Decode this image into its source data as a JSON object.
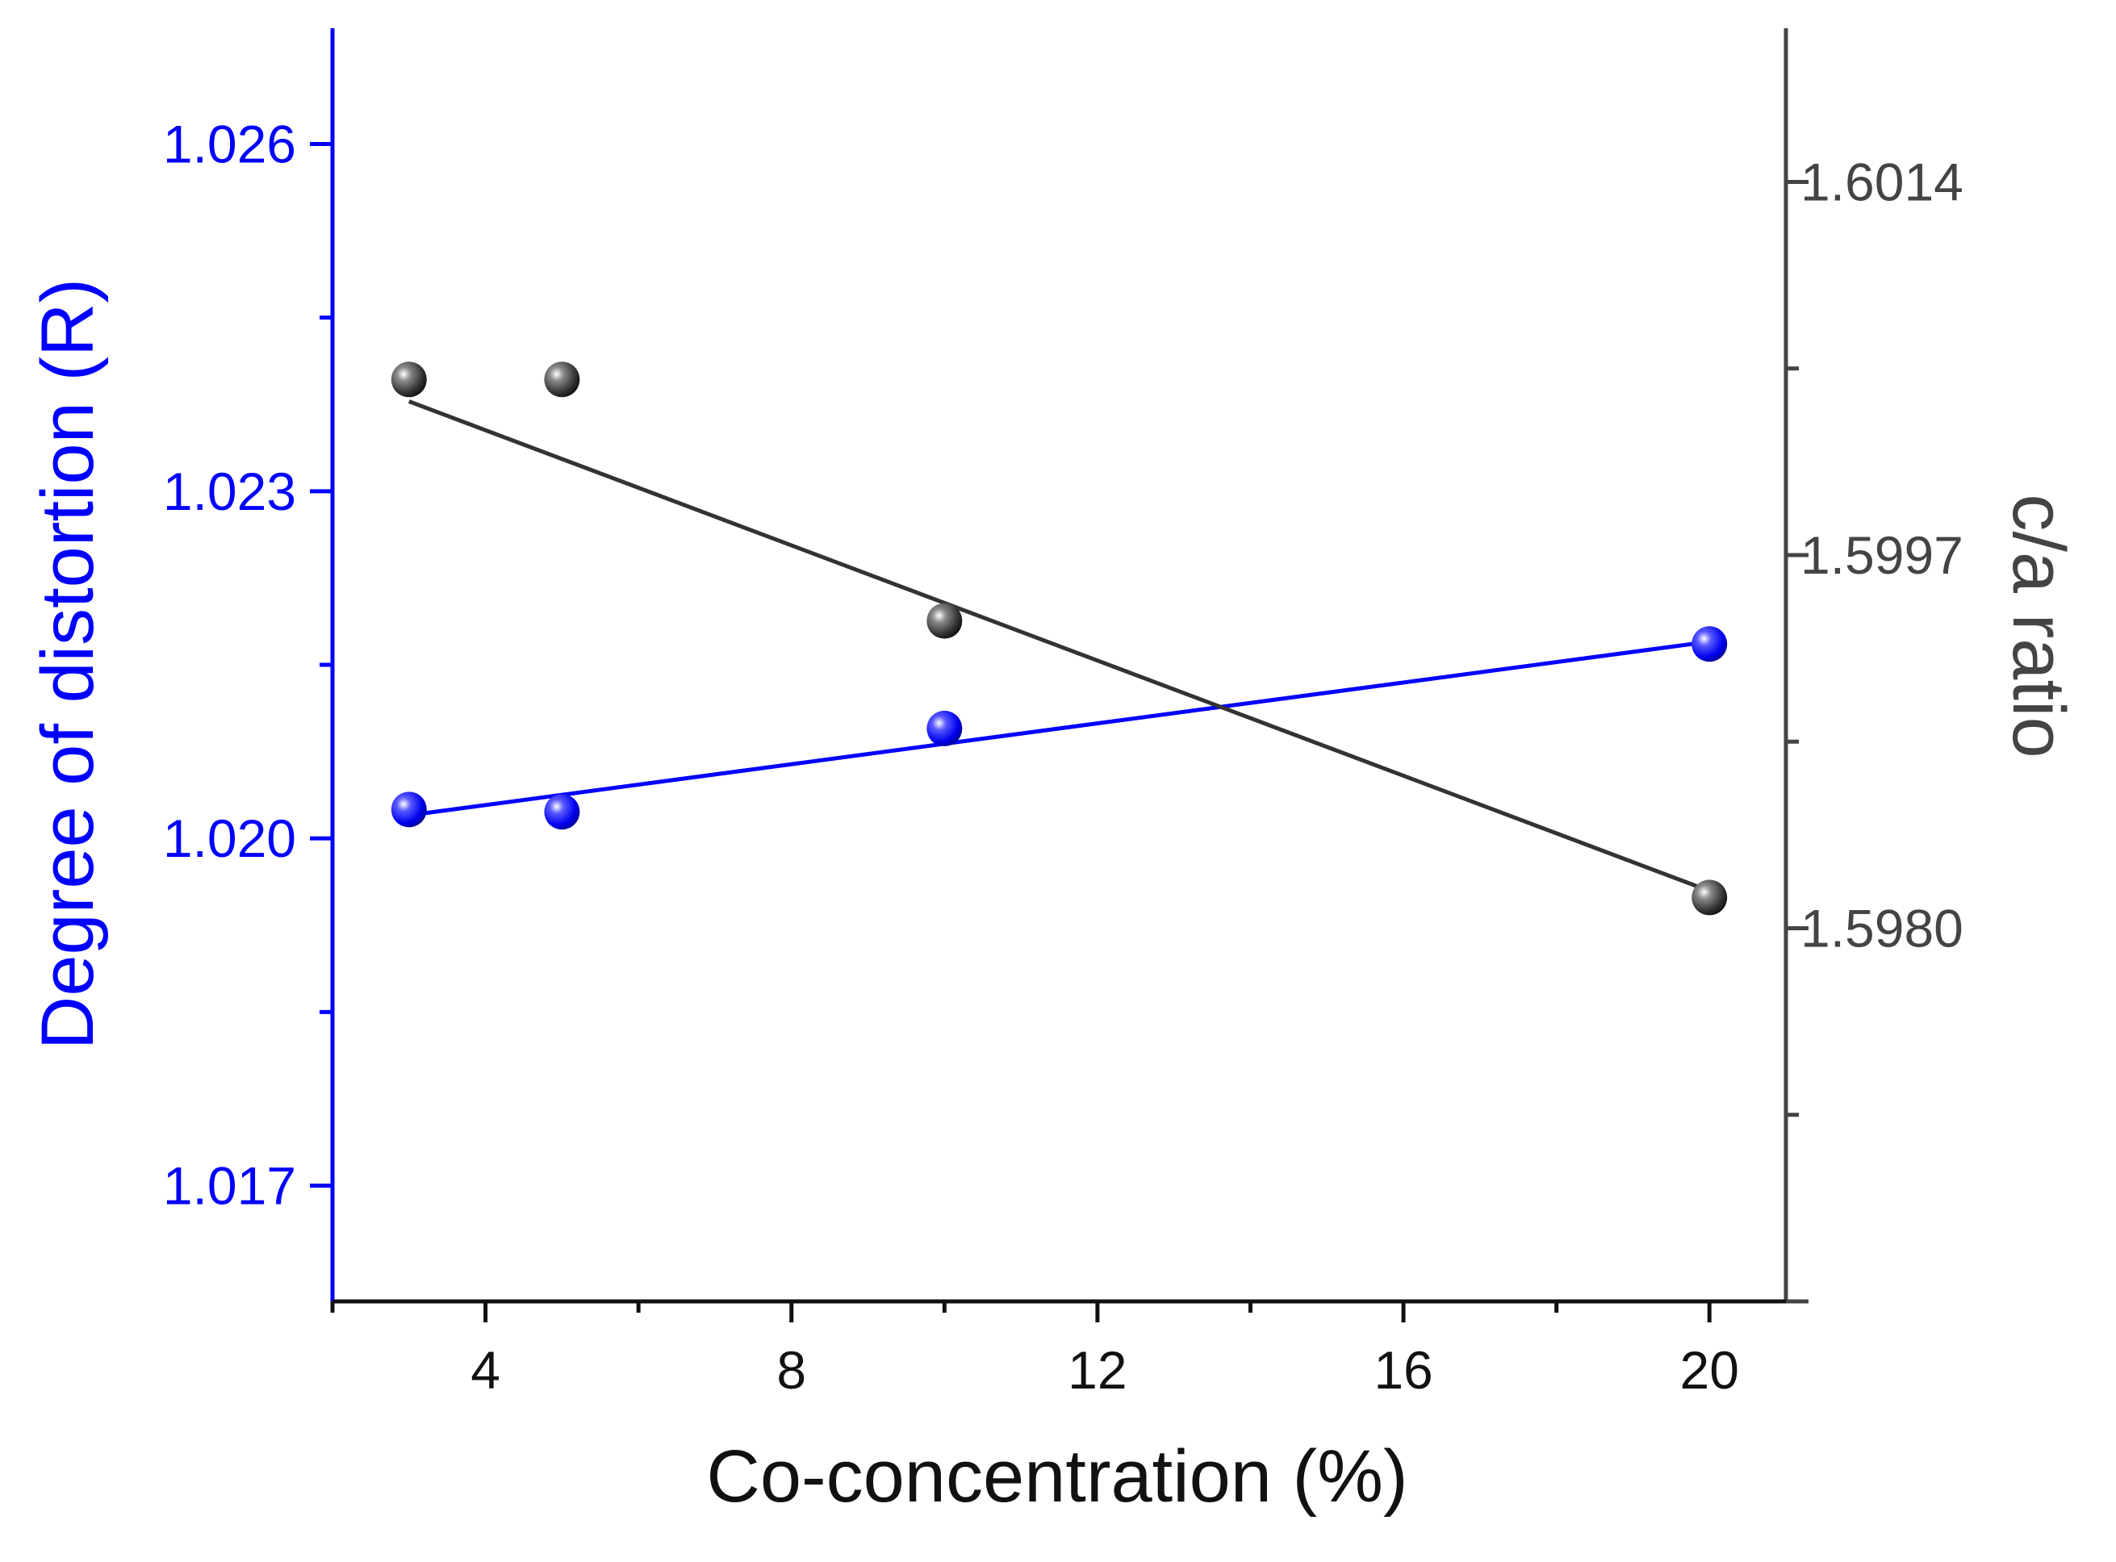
{
  "chart_data": {
    "type": "scatter",
    "title": "",
    "xlabel": "Co-concentration (%)",
    "ylabel_left": "Degree of distortion (R)",
    "ylabel_right": "c/a ratio",
    "xlim": [
      2,
      21
    ],
    "ylim_left": [
      1.016,
      1.027
    ],
    "ylim_right": [
      1.5963,
      1.6021
    ],
    "x_ticks": [
      4,
      8,
      12,
      16,
      20
    ],
    "x_tick_labels": [
      "4",
      "8",
      "12",
      "16",
      "20"
    ],
    "y_left_ticks": [
      1.017,
      1.02,
      1.023,
      1.026
    ],
    "y_left_tick_labels": [
      "1.017",
      "1.020",
      "1.023",
      "1.026"
    ],
    "y_right_ticks": [
      1.598,
      1.5997,
      1.6014
    ],
    "y_right_tick_labels": [
      "1.5980",
      "1.5997",
      "1.6014"
    ],
    "grid": false,
    "series": [
      {
        "name": "Degree of distortion (R)",
        "axis": "left",
        "color": "#0000ff",
        "x": [
          3,
          5,
          10,
          20
        ],
        "y": [
          1.02025,
          1.02023,
          1.02095,
          1.02168
        ],
        "fit_line": {
          "x": [
            3,
            20
          ],
          "y": [
            1.0202,
            1.0217
          ]
        }
      },
      {
        "name": "c/a ratio",
        "axis": "right",
        "color": "#333333",
        "x": [
          3,
          5,
          10,
          20
        ],
        "y": [
          1.6005,
          1.6005,
          1.5994,
          1.59814
        ],
        "fit_line": {
          "x": [
            3,
            20
          ],
          "y": [
            1.6004,
            1.59817
          ]
        }
      }
    ]
  }
}
